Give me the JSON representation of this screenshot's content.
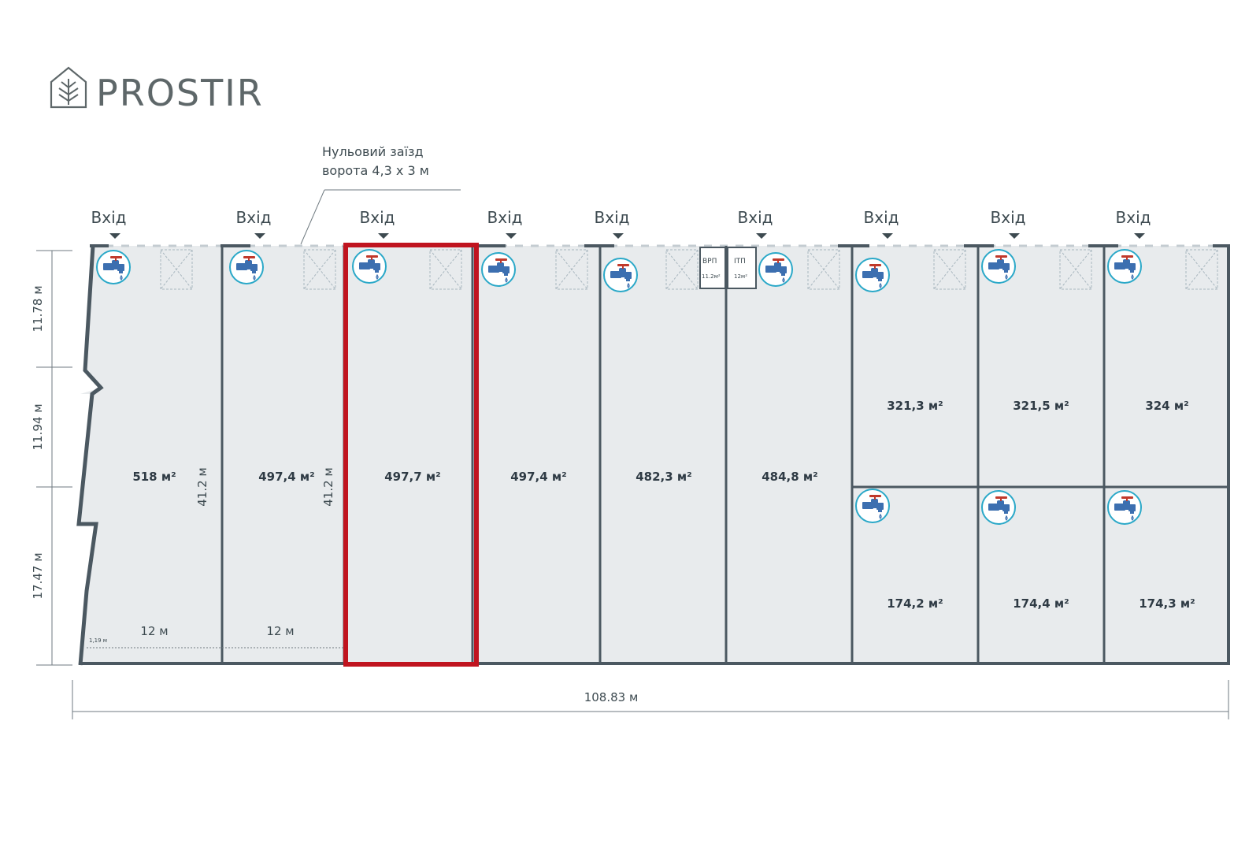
{
  "brand": {
    "name": "PROSTIR"
  },
  "note": {
    "line1": "Нульовий заїзд",
    "line2": "ворота 4,3 х 3 м"
  },
  "entrance_label": "Вхід",
  "units": [
    {
      "area": "518 м²"
    },
    {
      "area": "497,4 м²"
    },
    {
      "area": "497,7 м²",
      "highlighted": true
    },
    {
      "area": "497,4 м²"
    },
    {
      "area": "482,3 м²"
    },
    {
      "area": "484,8 м²"
    },
    {
      "area_top": "321,3 м²",
      "area_bottom": "174,2 м²"
    },
    {
      "area_top": "321,5 м²",
      "area_bottom": "174,4 м²"
    },
    {
      "area_top": "324 м²",
      "area_bottom": "174,3 м²"
    }
  ],
  "utility_rooms": [
    {
      "name": "ВРП",
      "area": "11.2м²"
    },
    {
      "name": "ІТП",
      "area": "12м²"
    }
  ],
  "dimensions": {
    "left_top": "11.78 м",
    "left_middle": "11.94 м",
    "left_bottom": "17.47 м",
    "total_width": "108.83 м",
    "unit_length_1": "41.2 м",
    "unit_length_2": "41.2 м",
    "unit_width_1": "12 м",
    "unit_width_2": "12 м",
    "small_offset": "1,19 м"
  },
  "colors": {
    "floor": "#e8ebed",
    "wall": "#4b5861",
    "highlight": "#c0141f",
    "water_icon_ring": "#2aa8c8",
    "water_icon_body": "#3c6fb0",
    "water_icon_handle": "#c0392b"
  },
  "icons": {
    "water": "water-tap-icon",
    "brand": "house-tree-logo-icon",
    "entrance": "arrow-down-icon"
  }
}
